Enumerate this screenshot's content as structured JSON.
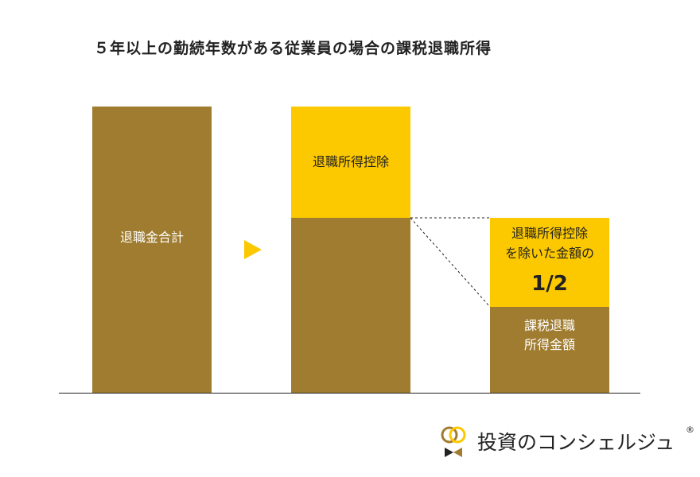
{
  "title": "５年以上の勤続年数がある従業員の場合の課税退職所得",
  "bar1": {
    "label": "退職金合計"
  },
  "bar2": {
    "top_label": "退職所得控除"
  },
  "bar3": {
    "top_label_line1": "退職所得控除",
    "top_label_line2": "を除いた金額の",
    "fraction": "1/2",
    "bottom_label_line1": "課税退職",
    "bottom_label_line2": "所得金額"
  },
  "logo": {
    "text": "投資のコンシェルジュ",
    "mark": "®"
  },
  "colors": {
    "brown": "#a07c30",
    "yellow": "#fcc800",
    "text": "#222222"
  },
  "icons": {
    "arrow": "triangle-right-icon",
    "logo": "rings-logo-icon"
  }
}
